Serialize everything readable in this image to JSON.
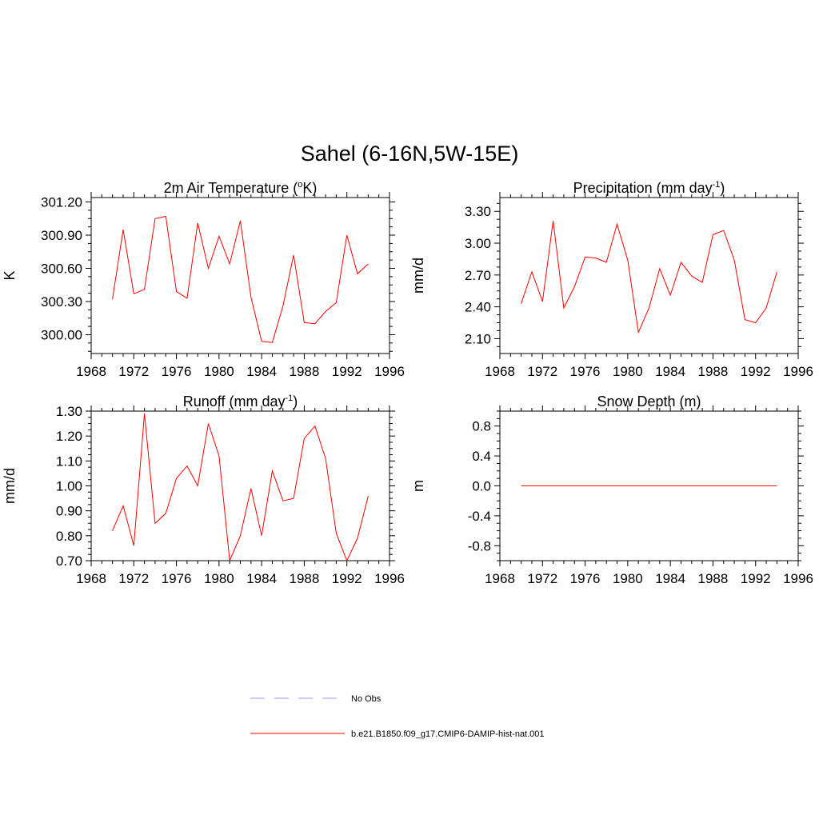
{
  "figure": {
    "title": "Sahel (6-16N,5W-15E)"
  },
  "colors": {
    "model_line": "#ff0000",
    "obs_line": "#9999ff",
    "axis": "#000000"
  },
  "legend": {
    "placement": "bottom-center",
    "entries": [
      {
        "label": "No Obs",
        "style": "dashed",
        "color": "#9999ff"
      },
      {
        "label": "b.e21.B1850.f09_g17.CMIP6-DAMIP-hist-nat.001",
        "style": "solid",
        "color": "#ff0000"
      }
    ]
  },
  "chart_data": [
    {
      "type": "line",
      "title": "2m Air Temperature (°K)",
      "title_parts": [
        "2m Air Temperature (",
        "o",
        "K)"
      ],
      "ylabel": "K",
      "xlim": [
        1968,
        1996
      ],
      "ylim": [
        299.83,
        301.24
      ],
      "xticks": [
        1968,
        1972,
        1976,
        1980,
        1984,
        1988,
        1992,
        1996
      ],
      "yticks": [
        300.0,
        300.3,
        300.6,
        300.9,
        301.2
      ],
      "ytick_decimals": 2,
      "series": [
        {
          "x": [
            1970,
            1971,
            1972,
            1973,
            1974,
            1975,
            1976,
            1977,
            1978,
            1979,
            1980,
            1981,
            1982,
            1983,
            1984,
            1985,
            1986,
            1987,
            1988,
            1989,
            1990,
            1991,
            1992,
            1993,
            1994
          ],
          "values": [
            300.32,
            300.95,
            300.37,
            300.41,
            301.05,
            301.07,
            300.39,
            300.33,
            301.01,
            300.6,
            300.89,
            300.64,
            301.03,
            300.34,
            299.94,
            299.93,
            300.26,
            300.72,
            300.11,
            300.1,
            300.21,
            300.29,
            300.9,
            300.55,
            300.64
          ]
        }
      ]
    },
    {
      "type": "line",
      "title": "Precipitation (mm day-1)",
      "title_parts": [
        "Precipitation (mm day",
        "-1",
        ")"
      ],
      "ylabel": "mm/d",
      "xlim": [
        1968,
        1996
      ],
      "ylim": [
        1.96,
        3.43
      ],
      "xticks": [
        1968,
        1972,
        1976,
        1980,
        1984,
        1988,
        1992,
        1996
      ],
      "yticks": [
        2.1,
        2.4,
        2.7,
        3.0,
        3.3
      ],
      "ytick_decimals": 2,
      "series": [
        {
          "x": [
            1970,
            1971,
            1972,
            1973,
            1974,
            1975,
            1976,
            1977,
            1978,
            1979,
            1980,
            1981,
            1982,
            1983,
            1984,
            1985,
            1986,
            1987,
            1988,
            1989,
            1990,
            1991,
            1992,
            1993,
            1994
          ],
          "values": [
            2.43,
            2.73,
            2.45,
            3.21,
            2.39,
            2.59,
            2.87,
            2.86,
            2.82,
            3.18,
            2.84,
            2.16,
            2.39,
            2.76,
            2.51,
            2.82,
            2.69,
            2.63,
            3.08,
            3.12,
            2.84,
            2.28,
            2.25,
            2.39,
            2.73
          ]
        }
      ]
    },
    {
      "type": "line",
      "title": "Runoff (mm day-1)",
      "title_parts": [
        "Runoff (mm day",
        "-1",
        ")"
      ],
      "ylabel": "mm/d",
      "xlim": [
        1968,
        1996
      ],
      "ylim": [
        0.7,
        1.3
      ],
      "xticks": [
        1968,
        1972,
        1976,
        1980,
        1984,
        1988,
        1992,
        1996
      ],
      "yticks": [
        0.7,
        0.8,
        0.9,
        1.0,
        1.1,
        1.2,
        1.3
      ],
      "ytick_decimals": 2,
      "series": [
        {
          "x": [
            1970,
            1971,
            1972,
            1973,
            1974,
            1975,
            1976,
            1977,
            1978,
            1979,
            1980,
            1981,
            1982,
            1983,
            1984,
            1985,
            1986,
            1987,
            1988,
            1989,
            1990,
            1991,
            1992,
            1993,
            1994
          ],
          "values": [
            0.82,
            0.92,
            0.76,
            1.29,
            0.85,
            0.89,
            1.03,
            1.08,
            1.0,
            1.25,
            1.12,
            0.7,
            0.8,
            0.99,
            0.8,
            1.06,
            0.94,
            0.95,
            1.19,
            1.24,
            1.11,
            0.81,
            0.7,
            0.79,
            0.96
          ]
        }
      ]
    },
    {
      "type": "line",
      "title": "Snow Depth (m)",
      "title_parts": [
        "Snow Depth (m)",
        "",
        ""
      ],
      "ylabel": "m",
      "xlim": [
        1968,
        1996
      ],
      "ylim": [
        -1.0,
        1.0
      ],
      "xticks": [
        1968,
        1972,
        1976,
        1980,
        1984,
        1988,
        1992,
        1996
      ],
      "yticks": [
        -0.8,
        -0.4,
        0.0,
        0.4,
        0.8
      ],
      "ytick_decimals": 1,
      "series": [
        {
          "x": [
            1970,
            1971,
            1972,
            1973,
            1974,
            1975,
            1976,
            1977,
            1978,
            1979,
            1980,
            1981,
            1982,
            1983,
            1984,
            1985,
            1986,
            1987,
            1988,
            1989,
            1990,
            1991,
            1992,
            1993,
            1994
          ],
          "values": [
            0,
            0,
            0,
            0,
            0,
            0,
            0,
            0,
            0,
            0,
            0,
            0,
            0,
            0,
            0,
            0,
            0,
            0,
            0,
            0,
            0,
            0,
            0,
            0,
            0
          ]
        }
      ]
    }
  ]
}
